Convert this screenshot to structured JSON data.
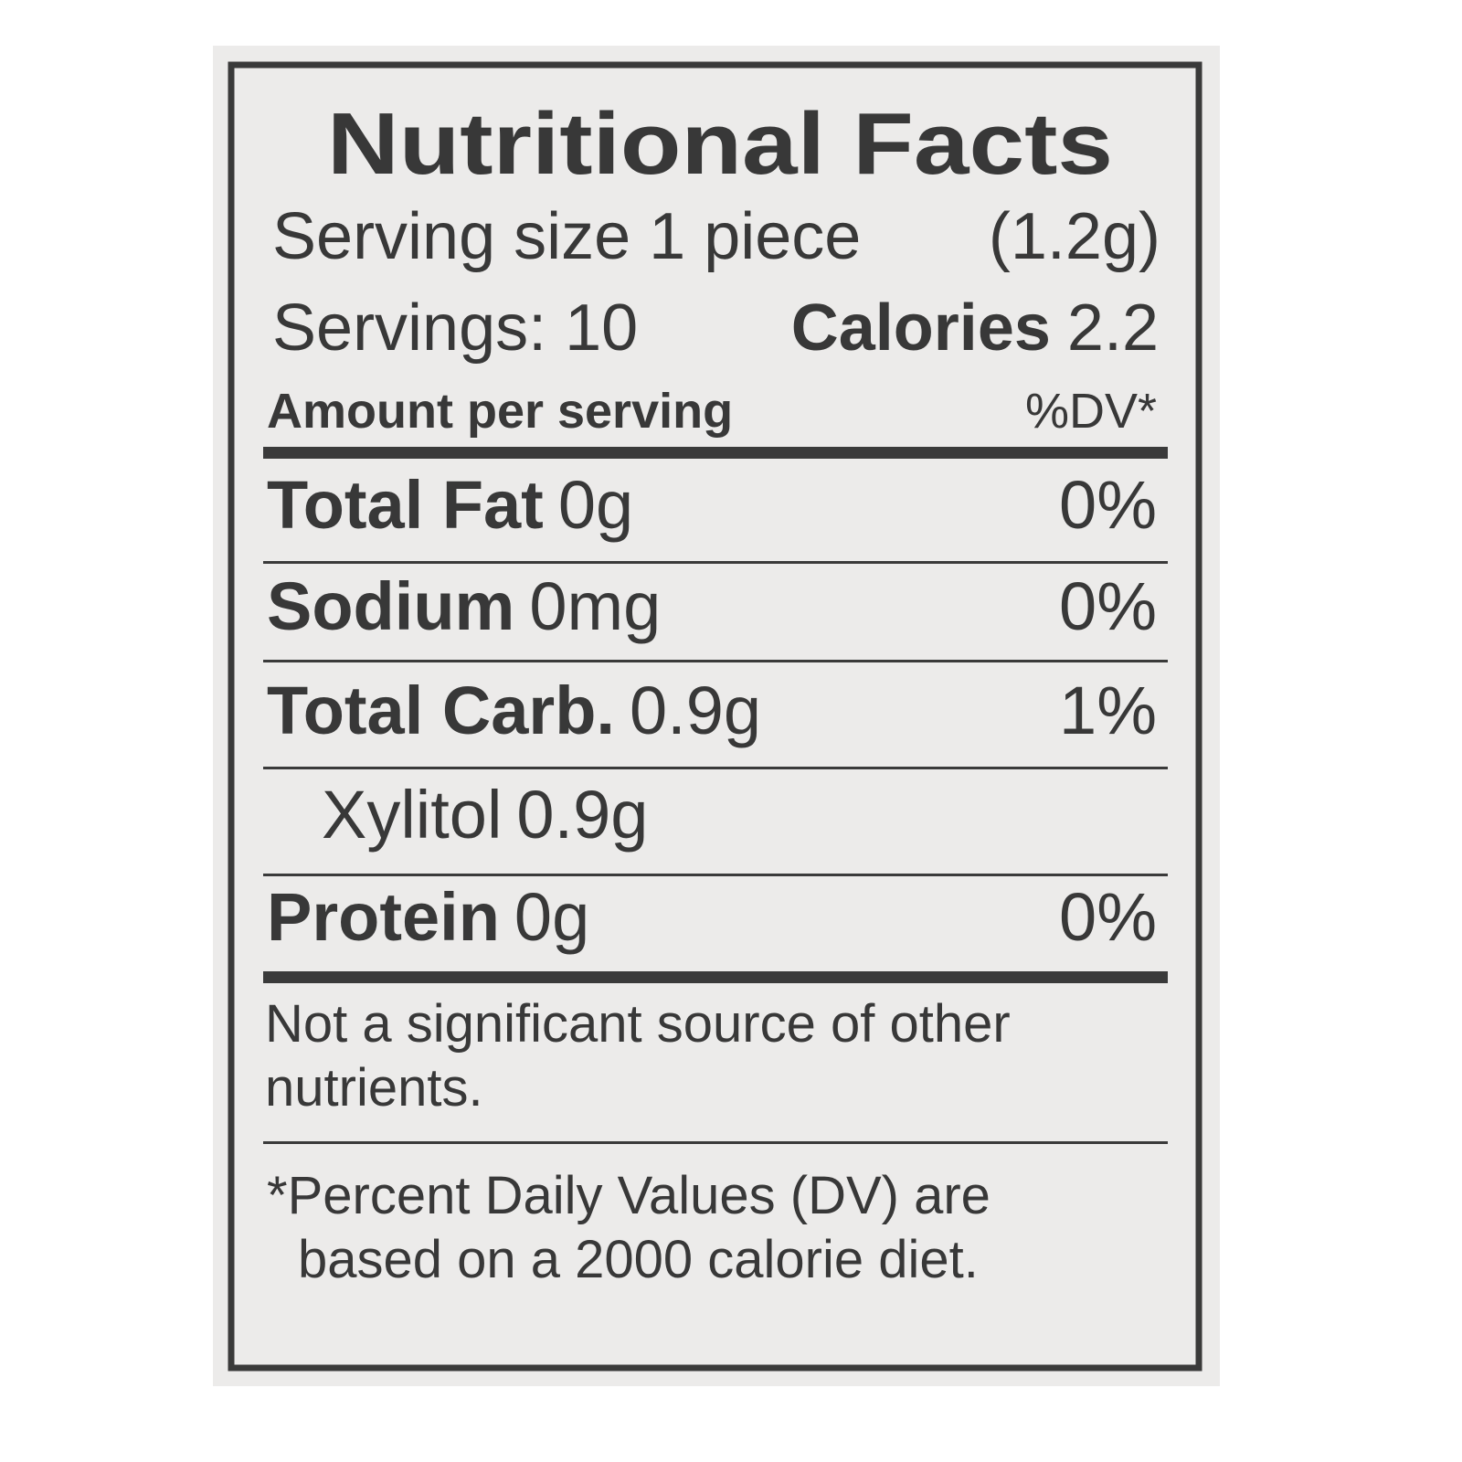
{
  "title": "Nutritional Facts",
  "serving_size": {
    "label": "Serving size 1 piece",
    "amount": "(1.2g)"
  },
  "servings": "Servings: 10",
  "calories": {
    "label": "Calories",
    "value": "2.2"
  },
  "header": {
    "amount": "Amount per serving",
    "dv": "%DV*"
  },
  "rows": [
    {
      "name": "Total Fat",
      "amount": "0g",
      "dv": "0%"
    },
    {
      "name": "Sodium",
      "amount": "0mg",
      "dv": "0%"
    },
    {
      "name": "Total Carb.",
      "amount": "0.9g",
      "dv": "1%"
    },
    {
      "name": "Xylitol",
      "amount": "0.9g"
    },
    {
      "name": "Protein",
      "amount": "0g",
      "dv": "0%"
    }
  ],
  "note": [
    "Not a significant source of other",
    "nutrients."
  ],
  "footnote": [
    "*Percent Daily Values (DV) are",
    "based on a 2000 calorie diet."
  ]
}
